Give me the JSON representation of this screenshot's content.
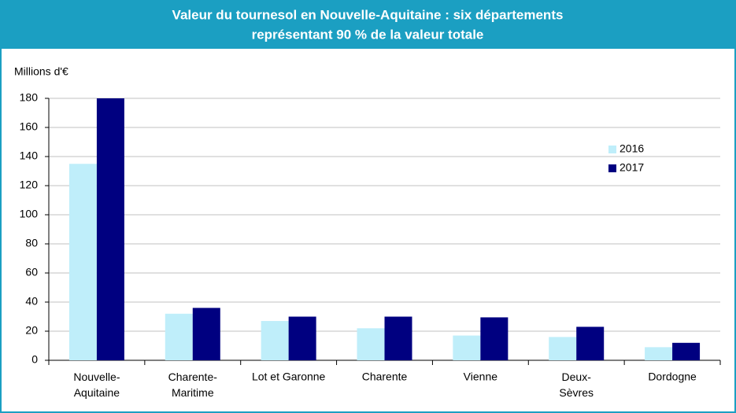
{
  "chart_data": {
    "type": "bar",
    "title": [
      "Valeur du tournesol en Nouvelle-Aquitaine : six départements",
      "représentant 90 % de la valeur totale"
    ],
    "y_label": "Millions d'€",
    "categories": [
      "Nouvelle-Aquitaine",
      "Charente-Maritime",
      "Lot et Garonne",
      "Charente",
      "Vienne",
      "Deux-Sèvres",
      "Dordogne"
    ],
    "series": [
      {
        "name": "2016",
        "color": "#bfeefa",
        "values": [
          135,
          32,
          27,
          22,
          17,
          16,
          9
        ]
      },
      {
        "name": "2017",
        "color": "#000080",
        "values": [
          180,
          36,
          30,
          30,
          29.5,
          23,
          12
        ]
      }
    ],
    "ylim": [
      0,
      180
    ],
    "yticks": [
      0,
      20,
      40,
      60,
      80,
      100,
      120,
      140,
      160,
      180
    ],
    "grid": true,
    "legend": "right"
  }
}
